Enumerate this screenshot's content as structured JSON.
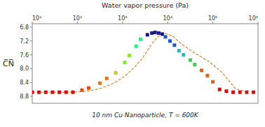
{
  "chart_data": {
    "type": "scatter",
    "title": "Water vapor pressure (Pa)",
    "y_label": "C̅N̅",
    "subtitle": "10 nm Cu Nanoparticle, T = 600K",
    "log": "x",
    "grid": false,
    "xlim": [
      10,
      1000000
    ],
    "xticks": [
      {
        "value": 10,
        "label": "10¹"
      },
      {
        "value": 100,
        "label": "10²"
      },
      {
        "value": 1000,
        "label": "10³"
      },
      {
        "value": 10000,
        "label": "10⁴"
      },
      {
        "value": 100000,
        "label": "10⁵"
      },
      {
        "value": 1000000,
        "label": "10⁶"
      }
    ],
    "ylim": [
      9.0,
      6.7
    ],
    "yticks": [
      6.8,
      7.2,
      7.6,
      {
        "value": 8.0,
        "label": "8.0"
      },
      8.4,
      8.8
    ],
    "series": [
      {
        "type": "line",
        "color": "#d4883a",
        "line_style": "dashed",
        "x": [
          10,
          19.9526,
          39.8107,
          79.4328,
          158.489,
          316.228,
          630.957,
          1122.02,
          1778.28,
          2818.38,
          4466.84,
          6309.57,
          8912.51,
          12589.3,
          19952.6,
          39810.7,
          79432.8,
          158489,
          316228,
          630957
        ],
        "values": [
          8.68,
          8.68,
          8.68,
          8.68,
          8.65,
          8.58,
          8.42,
          8.22,
          7.98,
          7.68,
          7.28,
          7.05,
          6.98,
          7.05,
          7.28,
          7.55,
          7.78,
          8.1,
          8.58,
          8.68
        ]
      },
      {
        "type": "scatter",
        "color": "#cc1111",
        "marker": "square",
        "x": [
          10,
          14.1254,
          19.9526,
          28.1838,
          39.8107,
          56.2341,
          79.4328
        ],
        "values": [
          8.68,
          8.68,
          8.68,
          8.68,
          8.68,
          8.68,
          8.68
        ]
      },
      {
        "type": "scatter",
        "color": "#e05010",
        "marker": "square",
        "x": [
          125.893,
          177.828
        ],
        "values": [
          8.62,
          8.56
        ]
      },
      {
        "type": "scatter",
        "color": "#e07820",
        "marker": "square",
        "x": [
          316.228,
          446.684
        ],
        "values": [
          8.42,
          8.28
        ]
      },
      {
        "type": "scatter",
        "color": "#c8c830",
        "marker": "circle",
        "x": [
          707.946
        ],
        "values": [
          8.12
        ]
      },
      {
        "type": "scatter",
        "color": "#88e820",
        "marker": "square",
        "x": [
          1122.02,
          1412.54
        ],
        "values": [
          7.82,
          7.62
        ]
      },
      {
        "type": "scatter",
        "color": "#30e888",
        "marker": "square",
        "x": [
          1995.26,
          2511.89
        ],
        "values": [
          7.35,
          7.15
        ]
      },
      {
        "type": "scatter",
        "color": "#1a1a88",
        "marker": "square",
        "x": [
          3548.13,
          4466.84,
          5248.07,
          6309.57,
          7585.78
        ],
        "values": [
          7.02,
          6.97,
          6.95,
          6.97,
          7.0
        ]
      },
      {
        "type": "scatter",
        "color": "#2255cc",
        "marker": "square",
        "x": [
          8912.51,
          11220.2,
          14125.4
        ],
        "values": [
          7.08,
          7.2,
          7.32
        ]
      },
      {
        "type": "scatter",
        "color": "#20b8c0",
        "marker": "square",
        "x": [
          17782.8,
          22387.2
        ],
        "values": [
          7.48,
          7.6
        ]
      },
      {
        "type": "scatter",
        "color": "#48c858",
        "marker": "square",
        "x": [
          31622.8,
          39810.7
        ],
        "values": [
          7.75,
          7.88
        ]
      },
      {
        "type": "scatter",
        "color": "#e06020",
        "marker": "square",
        "x": [
          56234.1,
          75857.8,
          100000
        ],
        "values": [
          8.05,
          8.2,
          8.38
        ]
      },
      {
        "type": "scatter",
        "color": "#cc1111",
        "marker": "square",
        "x": [
          141254,
          199526,
          281838,
          398107,
          562341,
          794328
        ],
        "values": [
          8.6,
          8.65,
          8.68,
          8.68,
          8.68,
          8.68
        ]
      }
    ]
  }
}
